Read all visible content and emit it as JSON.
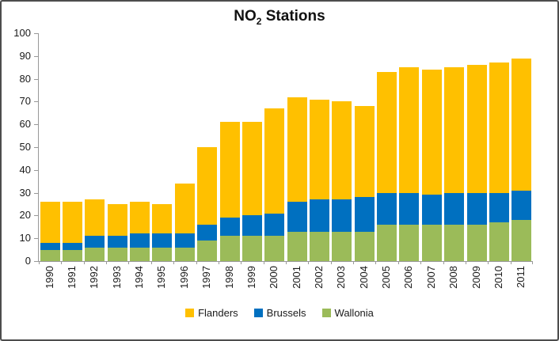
{
  "window": {
    "background": "#FFFFFF",
    "border_color": "#4D4D4D"
  },
  "chart_data": {
    "type": "bar",
    "stacked": true,
    "title": {
      "prefix": "NO",
      "subscript": "2",
      "suffix": " Stations",
      "full_text": "NO2 Stations"
    },
    "categories": [
      "1990",
      "1991",
      "1992",
      "1993",
      "1994",
      "1995",
      "1996",
      "1997",
      "1998",
      "1999",
      "2000",
      "2001",
      "2002",
      "2003",
      "2004",
      "2005",
      "2006",
      "2007",
      "2008",
      "2009",
      "2010",
      "2011"
    ],
    "series": [
      {
        "name": "Flanders",
        "color": "#FFC000",
        "values": [
          18,
          18,
          16,
          14,
          14,
          13,
          22,
          34,
          42,
          41,
          46,
          46,
          44,
          43,
          40,
          53,
          55,
          55,
          55,
          56,
          57,
          58
        ]
      },
      {
        "name": "Brussels",
        "color": "#0070C0",
        "values": [
          3,
          3,
          5,
          5,
          6,
          6,
          6,
          7,
          8,
          9,
          10,
          13,
          14,
          14,
          15,
          14,
          14,
          13,
          14,
          14,
          13,
          13
        ]
      },
      {
        "name": "Wallonia",
        "color": "#9BBB59",
        "values": [
          5,
          5,
          6,
          6,
          6,
          6,
          6,
          9,
          11,
          11,
          11,
          13,
          13,
          13,
          13,
          16,
          16,
          16,
          16,
          16,
          17,
          18
        ]
      }
    ],
    "stack_order_bottom_to_top": [
      "Wallonia",
      "Brussels",
      "Flanders"
    ],
    "totals": [
      26,
      26,
      27,
      25,
      26,
      25,
      34,
      50,
      61,
      61,
      67,
      72,
      71,
      70,
      68,
      83,
      85,
      84,
      85,
      86,
      87,
      89
    ],
    "y_axis": {
      "min": 0,
      "max": 100,
      "step": 10,
      "tick_labels": [
        "100",
        "90",
        "80",
        "70",
        "60",
        "50",
        "40",
        "30",
        "20",
        "10",
        "0"
      ]
    },
    "x_axis": {
      "label_rotation_degrees": 90
    },
    "legend": {
      "position": "bottom",
      "items": [
        "Flanders",
        "Brussels",
        "Wallonia"
      ]
    },
    "grid": false,
    "axis_color": "#989898",
    "text_color": "#1A1A1A"
  }
}
